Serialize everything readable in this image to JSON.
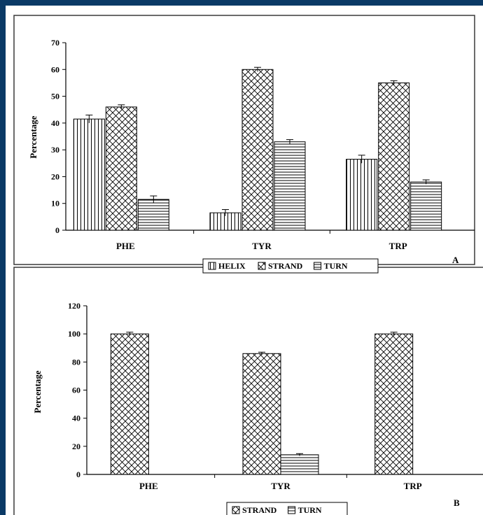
{
  "colors": {
    "frame": "#0b3a66",
    "ink": "#000000",
    "panel_border": "#3a3a3a",
    "background": "#ffffff"
  },
  "chart_data": [
    {
      "type": "bar",
      "panel_label": "A",
      "categories": [
        "PHE",
        "TYR",
        "TRP"
      ],
      "ylabel": "Percentage",
      "ylim": [
        0,
        70
      ],
      "yticks": [
        0,
        10,
        20,
        30,
        40,
        50,
        60,
        70
      ],
      "grid": false,
      "legend_position": "bottom",
      "series": [
        {
          "name": "HELIX",
          "pattern": "vertical-lines",
          "values": [
            41.5,
            6.5,
            26.5
          ],
          "errors": [
            1.5,
            1.2,
            1.5
          ]
        },
        {
          "name": "STRAND",
          "pattern": "crosshatch",
          "values": [
            46,
            60,
            55
          ],
          "errors": [
            0.8,
            0.8,
            0.8
          ]
        },
        {
          "name": "TURN",
          "pattern": "horizontal-lines",
          "values": [
            11.5,
            33,
            18
          ],
          "errors": [
            1.3,
            0.8,
            0.8
          ]
        }
      ]
    },
    {
      "type": "bar",
      "panel_label": "B",
      "categories": [
        "PHE",
        "TYR",
        "TRP"
      ],
      "ylabel": "Percentage",
      "ylim": [
        0,
        120
      ],
      "yticks": [
        0,
        20,
        40,
        60,
        80,
        100,
        120
      ],
      "grid": false,
      "legend_position": "bottom",
      "series": [
        {
          "name": "STRAND",
          "pattern": "crosshatch",
          "values": [
            100,
            86,
            100
          ],
          "errors": [
            1.2,
            1.0,
            1.2
          ]
        },
        {
          "name": "TURN",
          "pattern": "horizontal-lines",
          "values": [
            0,
            14,
            0
          ],
          "errors": [
            0,
            0.8,
            0
          ]
        }
      ]
    }
  ]
}
